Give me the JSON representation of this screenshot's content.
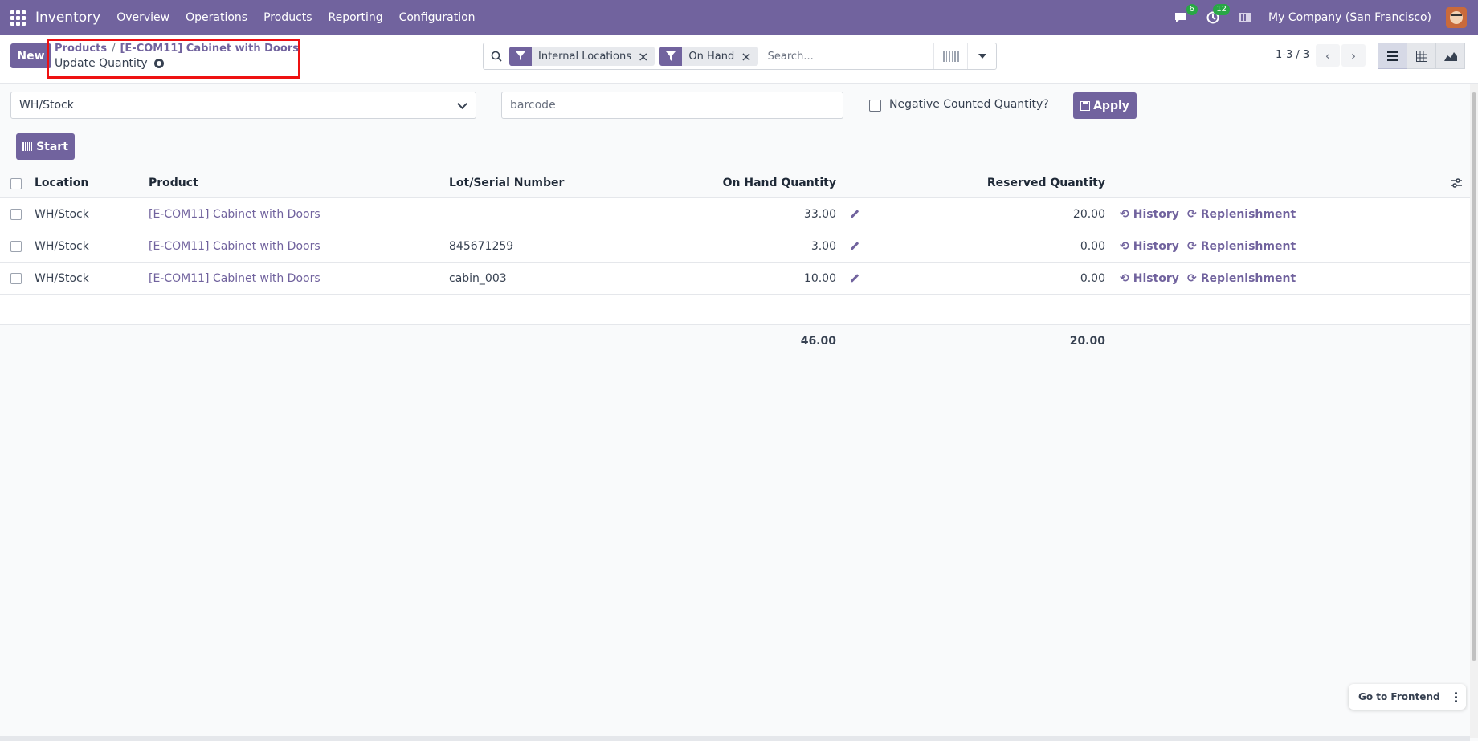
{
  "navbar": {
    "app_name": "Inventory",
    "menu": [
      "Overview",
      "Operations",
      "Products",
      "Reporting",
      "Configuration"
    ],
    "messages_count": "6",
    "activities_count": "12",
    "company": "My Company (San Francisco)"
  },
  "control": {
    "new_label": "New",
    "breadcrumb_root": "Products",
    "breadcrumb_separator": "/",
    "breadcrumb_record": "[E-COM11] Cabinet with Doors",
    "title": "Update Quantity",
    "facets": [
      {
        "label": "Internal Locations"
      },
      {
        "label": "On Hand"
      }
    ],
    "search_placeholder": "Search...",
    "pager": "1-3 / 3"
  },
  "filters": {
    "location": "WH/Stock",
    "barcode_placeholder": "barcode",
    "negative_label": "Negative Counted Quantity?",
    "apply_label": "Apply",
    "start_label": "Start"
  },
  "table": {
    "headers": {
      "location": "Location",
      "product": "Product",
      "lot": "Lot/Serial Number",
      "on_hand": "On Hand Quantity",
      "reserved": "Reserved Quantity"
    },
    "history_label": "History",
    "replenishment_label": "Replenishment",
    "rows": [
      {
        "location": "WH/Stock",
        "product": "[E-COM11] Cabinet with Doors",
        "lot": "",
        "on_hand": "33.00",
        "reserved": "20.00"
      },
      {
        "location": "WH/Stock",
        "product": "[E-COM11] Cabinet with Doors",
        "lot": "845671259",
        "on_hand": "3.00",
        "reserved": "0.00"
      },
      {
        "location": "WH/Stock",
        "product": "[E-COM11] Cabinet with Doors",
        "lot": "cabin_003",
        "on_hand": "10.00",
        "reserved": "0.00"
      }
    ],
    "total_on_hand": "46.00",
    "total_reserved": "20.00"
  },
  "frontend_label": "Go to Frontend",
  "colors": {
    "brand": "#71639e",
    "highlight_border": "#ee1111",
    "badge": "#28a745"
  }
}
